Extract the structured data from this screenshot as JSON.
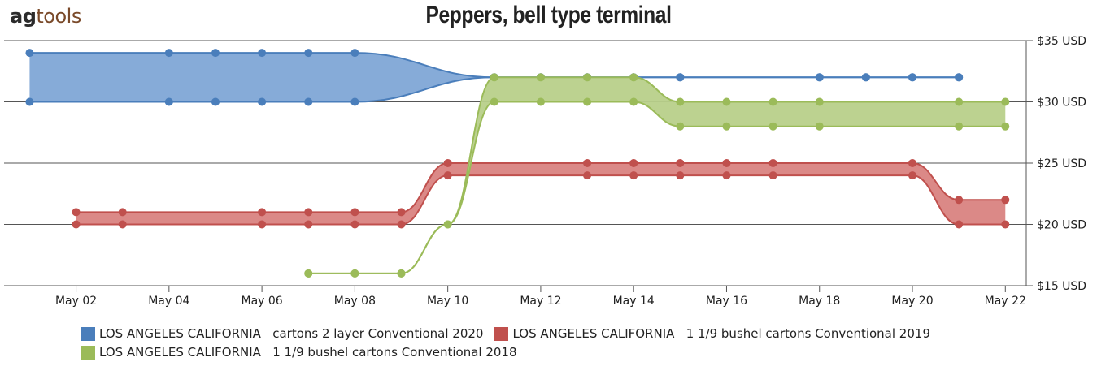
{
  "logo": {
    "ag": "ag",
    "tools": "tools"
  },
  "chart_data": {
    "type": "area",
    "title": "Peppers, bell type terminal",
    "xlabel": "",
    "ylabel": "",
    "x_ticks": [
      "May 02",
      "May 04",
      "May 06",
      "May 08",
      "May 10",
      "May 12",
      "May 14",
      "May 16",
      "May 18",
      "May 20",
      "May 22"
    ],
    "y_ticks": [
      "$35 USD",
      "$30 USD",
      "$25 USD",
      "$20 USD",
      "$15 USD"
    ],
    "xlim": [
      "May 01",
      "May 22"
    ],
    "ylim": [
      15,
      35
    ],
    "grid": true,
    "legend_position": "bottom",
    "series": [
      {
        "name": "LOS ANGELES CALIFORNIA   cartons 2 layer Conventional 2020",
        "color": "#4a7ebb",
        "fill": "#7fa6d6",
        "dates": [
          "May 01",
          "May 04",
          "May 05",
          "May 06",
          "May 07",
          "May 08",
          "May 11",
          "May 12",
          "May 13",
          "May 14",
          "May 15",
          "May 18",
          "May 19",
          "May 20",
          "May 21"
        ],
        "high": [
          34,
          34,
          34,
          34,
          34,
          34,
          32,
          32,
          32,
          32,
          32,
          32,
          32,
          32,
          32
        ],
        "low": [
          30,
          30,
          30,
          30,
          30,
          30,
          32,
          32,
          32,
          32,
          32,
          32,
          32,
          32,
          32
        ]
      },
      {
        "name": "LOS ANGELES CALIFORNIA   1 1/9 bushel cartons Conventional 2019",
        "color": "#c0504d",
        "fill": "#d98381",
        "dates": [
          "May 02",
          "May 03",
          "May 06",
          "May 07",
          "May 08",
          "May 09",
          "May 10",
          "May 13",
          "May 14",
          "May 15",
          "May 16",
          "May 17",
          "May 20",
          "May 21",
          "May 22"
        ],
        "high": [
          21,
          21,
          21,
          21,
          21,
          21,
          25,
          25,
          25,
          25,
          25,
          25,
          25,
          22,
          22
        ],
        "low": [
          20,
          20,
          20,
          20,
          20,
          20,
          24,
          24,
          24,
          24,
          24,
          24,
          24,
          20,
          20
        ]
      },
      {
        "name": "LOS ANGELES CALIFORNIA   1 1/9 bushel cartons Conventional 2018",
        "color": "#9bbb59",
        "fill": "#b8d08a",
        "dates": [
          "May 07",
          "May 08",
          "May 09",
          "May 10",
          "May 11",
          "May 12",
          "May 13",
          "May 14",
          "May 15",
          "May 16",
          "May 17",
          "May 18",
          "May 21",
          "May 22"
        ],
        "high": [
          16,
          16,
          16,
          20,
          32,
          32,
          32,
          32,
          30,
          30,
          30,
          30,
          30,
          30
        ],
        "low": [
          16,
          16,
          16,
          20,
          30,
          30,
          30,
          30,
          28,
          28,
          28,
          28,
          28,
          28
        ]
      }
    ]
  }
}
